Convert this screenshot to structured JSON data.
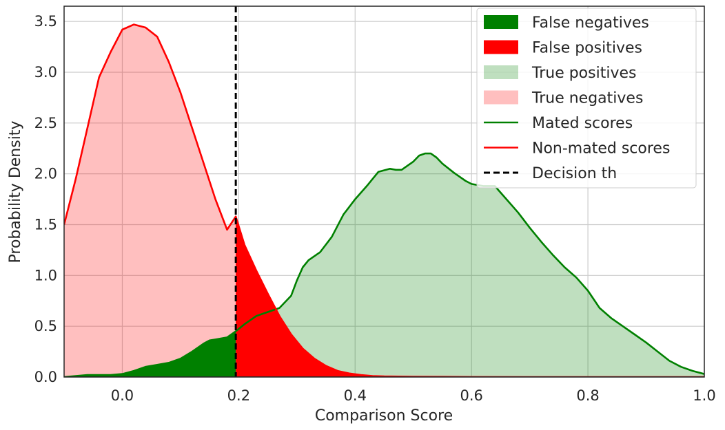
{
  "chart_data": {
    "type": "area",
    "title": "",
    "xlabel": "Comparison Score",
    "ylabel": "Probability Density",
    "xlim": [
      -0.1,
      1.0
    ],
    "ylim": [
      0.0,
      3.65
    ],
    "xticks": [
      0.0,
      0.2,
      0.4,
      0.6,
      0.8,
      1.0
    ],
    "xtick_labels": [
      "0.0",
      "0.2",
      "0.4",
      "0.6",
      "0.8",
      "1.0"
    ],
    "yticks": [
      0.0,
      0.5,
      1.0,
      1.5,
      2.0,
      2.5,
      3.0,
      3.5
    ],
    "ytick_labels": [
      "0.0",
      "0.5",
      "1.0",
      "1.5",
      "2.0",
      "2.5",
      "3.0",
      "3.5"
    ],
    "grid": true,
    "legend_position": "top-right",
    "decision_threshold": 0.195,
    "series": [
      {
        "name": "Mated scores",
        "color": "#008000",
        "x": [
          -0.1,
          -0.08,
          -0.06,
          -0.04,
          -0.02,
          0.0,
          0.02,
          0.04,
          0.06,
          0.08,
          0.1,
          0.12,
          0.14,
          0.15,
          0.16,
          0.18,
          0.195,
          0.21,
          0.23,
          0.25,
          0.27,
          0.29,
          0.3,
          0.31,
          0.32,
          0.34,
          0.36,
          0.38,
          0.4,
          0.42,
          0.44,
          0.46,
          0.47,
          0.48,
          0.49,
          0.5,
          0.51,
          0.52,
          0.53,
          0.54,
          0.55,
          0.57,
          0.59,
          0.6,
          0.62,
          0.64,
          0.66,
          0.68,
          0.7,
          0.72,
          0.74,
          0.76,
          0.78,
          0.8,
          0.82,
          0.84,
          0.86,
          0.88,
          0.9,
          0.92,
          0.94,
          0.96,
          0.98,
          1.0
        ],
        "values": [
          0.0,
          0.01,
          0.02,
          0.02,
          0.02,
          0.03,
          0.06,
          0.1,
          0.12,
          0.14,
          0.18,
          0.25,
          0.33,
          0.36,
          0.37,
          0.39,
          0.45,
          0.52,
          0.6,
          0.64,
          0.68,
          0.8,
          0.95,
          1.08,
          1.15,
          1.23,
          1.38,
          1.6,
          1.75,
          1.88,
          2.02,
          2.05,
          2.04,
          2.04,
          2.08,
          2.12,
          2.18,
          2.2,
          2.2,
          2.16,
          2.1,
          2.01,
          1.93,
          1.9,
          1.88,
          1.88,
          1.75,
          1.62,
          1.47,
          1.33,
          1.2,
          1.08,
          0.98,
          0.85,
          0.68,
          0.58,
          0.5,
          0.42,
          0.34,
          0.25,
          0.16,
          0.1,
          0.06,
          0.03
        ]
      },
      {
        "name": "Non-mated scores",
        "color": "#ff0000",
        "x": [
          -0.1,
          -0.08,
          -0.06,
          -0.04,
          -0.02,
          0.0,
          0.02,
          0.04,
          0.06,
          0.08,
          0.1,
          0.12,
          0.14,
          0.16,
          0.18,
          0.195,
          0.21,
          0.23,
          0.25,
          0.27,
          0.29,
          0.31,
          0.33,
          0.35,
          0.37,
          0.39,
          0.41,
          0.43,
          0.45,
          0.5,
          0.55,
          0.6,
          0.7,
          0.8,
          0.9,
          1.0
        ],
        "values": [
          1.5,
          1.95,
          2.45,
          2.95,
          3.2,
          3.42,
          3.47,
          3.44,
          3.35,
          3.1,
          2.8,
          2.45,
          2.1,
          1.75,
          1.45,
          1.58,
          1.3,
          1.05,
          0.82,
          0.6,
          0.42,
          0.28,
          0.18,
          0.11,
          0.06,
          0.035,
          0.02,
          0.01,
          0.006,
          0.003,
          0.002,
          0.001,
          0.0,
          0.0,
          0.0,
          0.0
        ]
      }
    ],
    "legend": [
      {
        "label": "False negatives",
        "kind": "patch",
        "color": "#008000",
        "opacity": 1.0
      },
      {
        "label": "False positives",
        "kind": "patch",
        "color": "#ff0000",
        "opacity": 1.0
      },
      {
        "label": "True positives",
        "kind": "patch",
        "color": "#008000",
        "opacity": 0.25
      },
      {
        "label": "True negatives",
        "kind": "patch",
        "color": "#ff0000",
        "opacity": 0.25
      },
      {
        "label": "Mated scores",
        "kind": "line",
        "color": "#008000"
      },
      {
        "label": "Non-mated scores",
        "kind": "line",
        "color": "#ff0000"
      },
      {
        "label": "Decision th",
        "kind": "dashed",
        "color": "#000000"
      }
    ]
  }
}
